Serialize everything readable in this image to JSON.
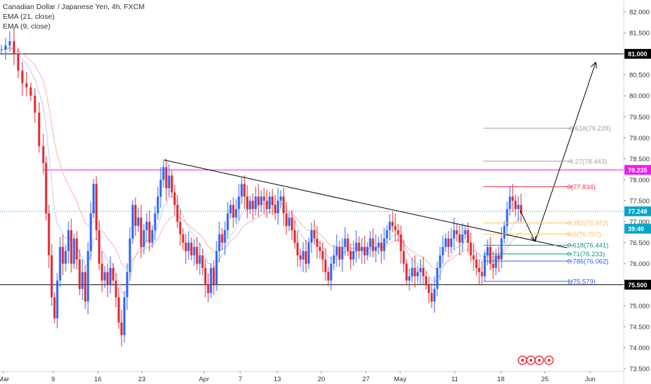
{
  "legend": {
    "title": "Canadian Dollar / Japanese Yen, 4h, FXCM",
    "ema21": "EMA (21, close)",
    "ema9": "EMA (9, close)"
  },
  "colors": {
    "bull": "#2962ff",
    "bear": "#e0252b",
    "ema21": "#f7b3b3",
    "ema9": "#bcc9ff",
    "hline": "#000000",
    "magenta": "#e91ee9",
    "dotted": "#00a6c8"
  },
  "price_axis": {
    "labels": [
      "82.000",
      "81.500",
      "81.000",
      "80.500",
      "80.000",
      "79.500",
      "79.000",
      "78.500",
      "78.000",
      "77.500",
      "77.000",
      "76.500",
      "76.000",
      "75.500",
      "75.000",
      "74.500",
      "74.000",
      "73.500"
    ],
    "badges": [
      {
        "text": "81.000",
        "bg": "#000000",
        "fg": "#ffffff",
        "value": 81.0
      },
      {
        "text": "78.235",
        "bg": "#e91ee9",
        "fg": "#ffffff",
        "value": 78.235
      },
      {
        "text": "77.248",
        "bg": "#00a6c8",
        "fg": "#ffffff",
        "value": 77.248
      },
      {
        "text": "39:40",
        "bg": "#00a6c8",
        "fg": "#ffffff",
        "value": 77.1
      },
      {
        "text": "75.500",
        "bg": "#000000",
        "fg": "#ffffff",
        "value": 75.5
      }
    ]
  },
  "time_axis": {
    "labels": [
      "Mar",
      "9",
      "16",
      "23",
      "Apr",
      "7",
      "13",
      "20",
      "27",
      "May",
      "11",
      "18",
      "25",
      "Jun"
    ]
  },
  "chart_data": {
    "type": "candlestick",
    "title": "Canadian Dollar / Japanese Yen, 4h, FXCM",
    "symbol": "CADJPY",
    "timeframe": "4h",
    "y_range": [
      73.4,
      82.2
    ],
    "grid": false,
    "last_price": 77.248,
    "countdown": "39:40",
    "horizontal_lines": [
      {
        "value": 81.0,
        "label": "81.000"
      },
      {
        "value": 78.235,
        "label": "78.235"
      },
      {
        "value": 77.248,
        "label": "77.248"
      },
      {
        "value": 75.5,
        "label": "75.500"
      }
    ],
    "fibonacci": [
      {
        "level": "-0.618",
        "value": 79.228,
        "label": "-0.618(79.228)",
        "color": "#9e9e9e"
      },
      {
        "level": "-0.27",
        "value": 78.443,
        "label": "-0.27(78.443)",
        "color": "#9e9e9e"
      },
      {
        "level": "0",
        "value": 77.834,
        "label": "0(77.834)",
        "color": "#f23645"
      },
      {
        "level": "0.382",
        "value": 76.973,
        "label": "0.382(76.973)",
        "color": "#f9c45a"
      },
      {
        "level": "0.5",
        "value": 76.707,
        "label": "0.5(76.707)",
        "color": "#f9c45a"
      },
      {
        "level": "0.618",
        "value": 76.441,
        "label": "0.618(76.441)",
        "color": "#089981"
      },
      {
        "level": "0.71",
        "value": 76.233,
        "label": "0.71(76.233)",
        "color": "#089981"
      },
      {
        "level": "0.786",
        "value": 76.062,
        "label": "0.786(76.062)",
        "color": "#2962ff"
      },
      {
        "level": "1",
        "value": 75.579,
        "label": "1(75.579)",
        "color": "#2962ff"
      }
    ],
    "indicators": [
      "EMA (21, close)",
      "EMA (9, close)"
    ]
  }
}
